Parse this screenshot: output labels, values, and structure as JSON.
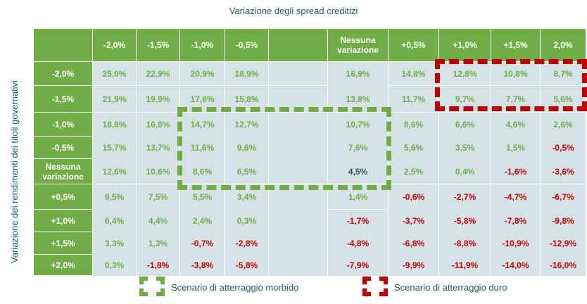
{
  "chart_data": {
    "type": "table",
    "title": "Variazione degli spread creditizi",
    "ylabel": "Variazione dei rendimenti dei titoli governativi",
    "columns": [
      "-2,0%",
      "-1,5%",
      "-1,0%",
      "-0,5%",
      "",
      "Nessuna variazione",
      "+0,5%",
      "+1,0%",
      "+1,5%",
      "2,0%"
    ],
    "rows": [
      {
        "label": "-2,0%",
        "values": [
          "25,0%",
          "22,9%",
          "20,9%",
          "18,9%",
          "",
          "16,9%",
          "14,8%",
          "12,8%",
          "10,8%",
          "8,7%"
        ]
      },
      {
        "label": "-1,5%",
        "values": [
          "21,9%",
          "19,9%",
          "17,8%",
          "15,8%",
          "",
          "13,8%",
          "11,7%",
          "9,7%",
          "7,7%",
          "5,6%"
        ]
      },
      {
        "label": "-1,0%",
        "values": [
          "18,8%",
          "16,8%",
          "14,7%",
          "12,7%",
          "",
          "10,7%",
          "8,6%",
          "6,6%",
          "4,6%",
          "2,6%"
        ]
      },
      {
        "label": "-0,5%",
        "values": [
          "15,7%",
          "13,7%",
          "11,6%",
          "9,6%",
          "",
          "7,6%",
          "5,6%",
          "3,5%",
          "1,5%",
          "-0,5%"
        ]
      },
      {
        "label": "Nessuna variazione",
        "values": [
          "12,6%",
          "10,6%",
          "8,6%",
          "6,5%",
          "",
          "4,5%",
          "2,5%",
          "0,4%",
          "-1,6%",
          "-3,6%"
        ]
      },
      {
        "label": "+0,5%",
        "values": [
          "9,5%",
          "7,5%",
          "5,5%",
          "3,4%",
          "",
          "1,4%",
          "-0,6%",
          "-2,7%",
          "-4,7%",
          "-6,7%"
        ]
      },
      {
        "label": "+1,0%",
        "values": [
          "6,4%",
          "4,4%",
          "2,4%",
          "0,3%",
          "",
          "-1,7%",
          "-3,7%",
          "-5,8%",
          "-7,8%",
          "-9,8%"
        ]
      },
      {
        "label": "+1,5%",
        "values": [
          "3,3%",
          "1,3%",
          "-0,7%",
          "-2,8%",
          "",
          "-4,8%",
          "-6,8%",
          "-8,8%",
          "-10,9%",
          "-12,9%"
        ]
      },
      {
        "label": "+2,0%",
        "values": [
          "0,3%",
          "-1,8%",
          "-3,8%",
          "-5,8%",
          "",
          "-7,9%",
          "-9,9%",
          "-11,9%",
          "-14,0%",
          "-16,0%"
        ]
      }
    ],
    "colors": {
      "positive": "#70ad47",
      "negative": "#c00000",
      "baseline": "#1f5b66",
      "header_bg": "#70ad47",
      "cell_bg": "#d6e3e6"
    },
    "legend": [
      {
        "label": "Scenario di atterraggio morbido",
        "color": "#70ad47",
        "style": "dashed"
      },
      {
        "label": "Scenario di atterraggio duro",
        "color": "#c00000",
        "style": "dashed"
      }
    ]
  }
}
